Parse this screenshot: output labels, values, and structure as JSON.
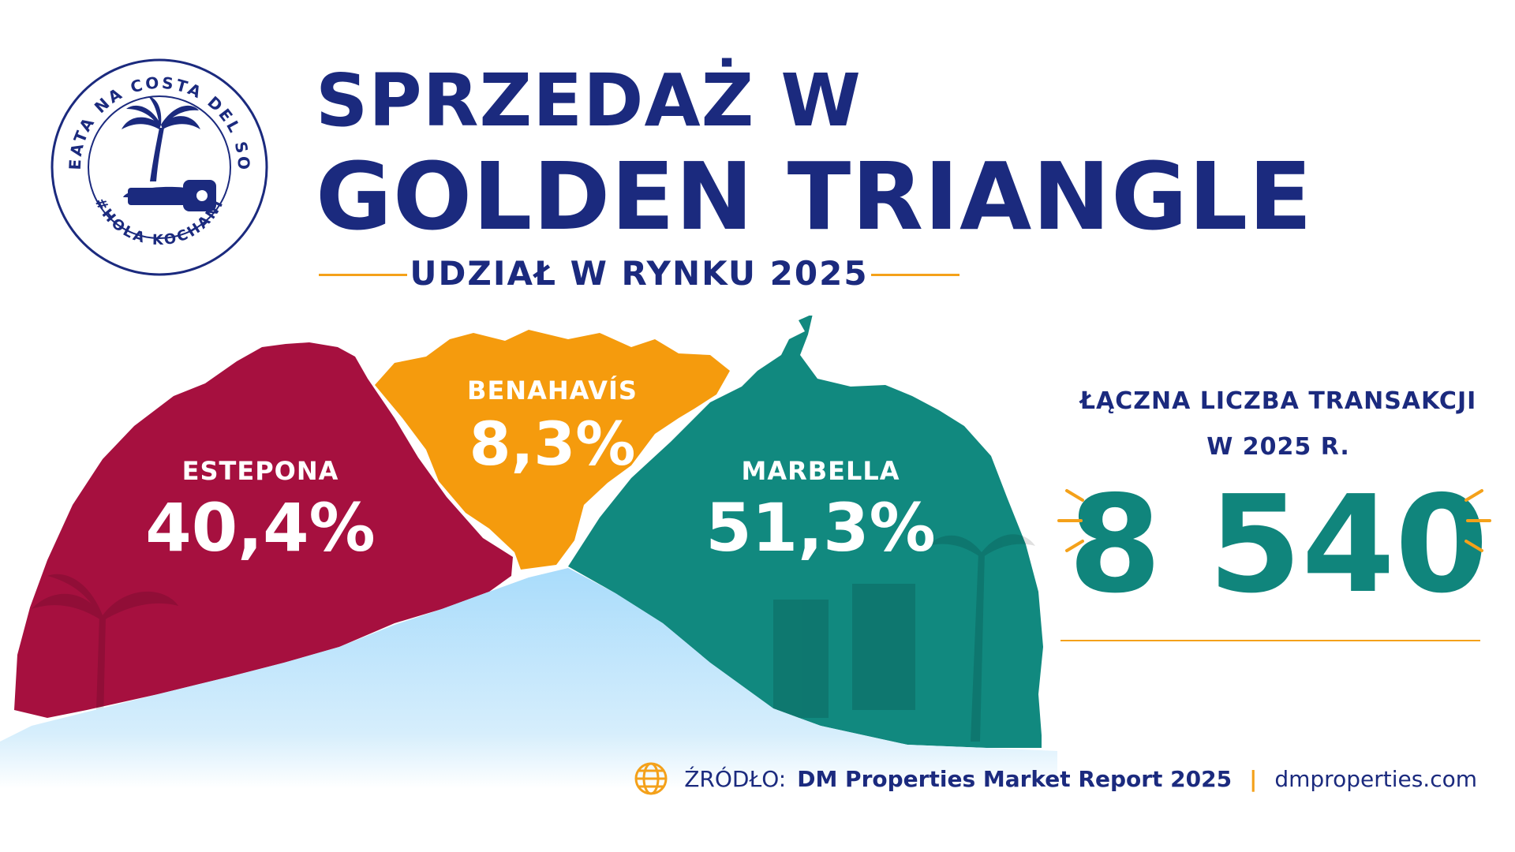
{
  "logo": {
    "ring_text_top": "BEATA NA COSTA DEL SOL",
    "ring_text_bottom": "#HOLA KOCHANI",
    "icon": "palm-key-icon"
  },
  "header": {
    "title_line1": "SPRZEDAŻ W",
    "title_line2": "GOLDEN TRIANGLE",
    "subtitle": "UDZIAŁ W RYNKU 2025"
  },
  "regions": [
    {
      "name": "ESTEPONA",
      "value": "40,4%",
      "color": "#a6103f"
    },
    {
      "name": "BENAHAVÍS",
      "value": "8,3%",
      "color": "#f59b0d"
    },
    {
      "name": "MARBELLA",
      "value": "51,3%",
      "color": "#11897f"
    }
  ],
  "stats": {
    "label_line1": "ŁĄCZNA LICZBA TRANSAKCJI",
    "label_line2": "W 2025 R.",
    "total": "8 540"
  },
  "source": {
    "prefix": "ŹRÓDŁO:",
    "name": "DM Properties Market Report 2025",
    "separator": "|",
    "website": "dmproperties.com",
    "icon": "globe-icon"
  },
  "colors": {
    "navy": "#1b2a7e",
    "accent": "#f4a11a",
    "teal": "#10857c",
    "sea": "#a8d8f5"
  }
}
